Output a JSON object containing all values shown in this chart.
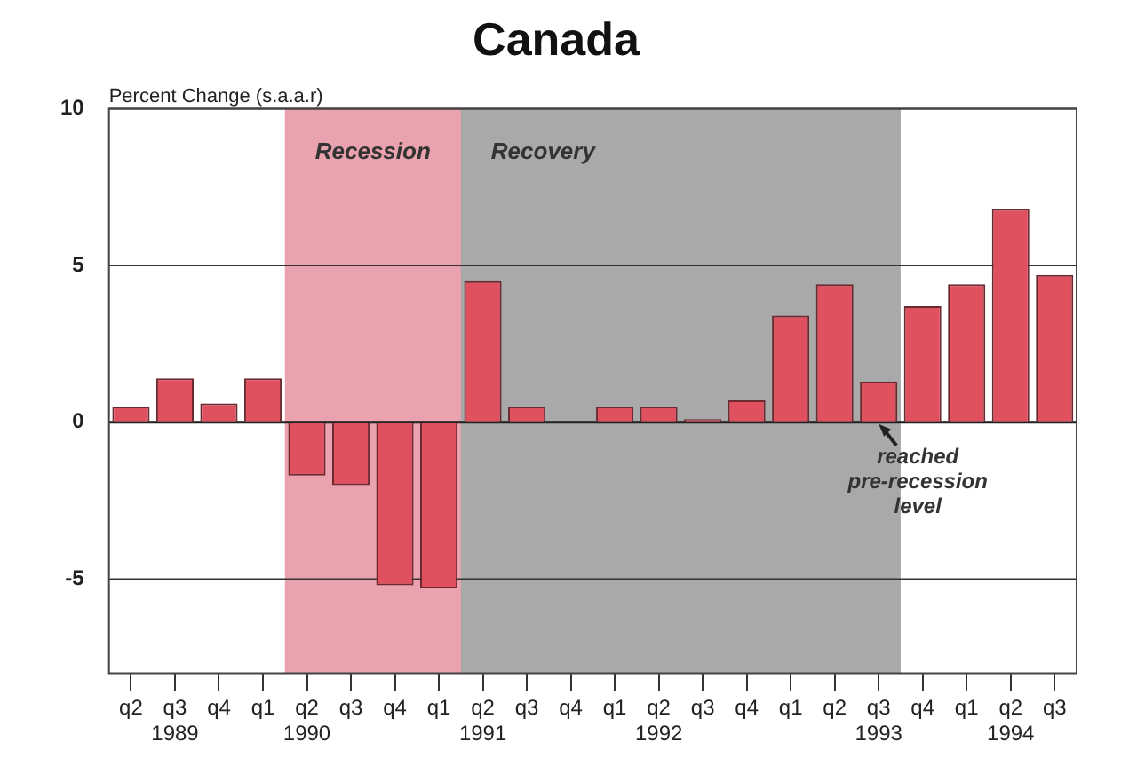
{
  "chart_data": {
    "type": "bar",
    "title": "Canada",
    "ylabel": "Percent Change (s.a.a.r)",
    "categories": [
      "q2",
      "q3\n1989",
      "q4",
      "q1",
      "q2\n1990",
      "q3",
      "q4",
      "q1",
      "q2\n1991",
      "q3",
      "q4",
      "q1",
      "q2\n1992",
      "q3",
      "q4",
      "q1",
      "q2",
      "q3\n1993",
      "q4",
      "q1",
      "q2\n1994",
      "q3"
    ],
    "values": [
      0.5,
      1.4,
      0.6,
      1.4,
      -1.7,
      -2.0,
      -5.2,
      -5.3,
      4.5,
      0.5,
      0,
      0.5,
      0.5,
      0.1,
      0.7,
      3.4,
      4.4,
      1.3,
      3.7,
      4.4,
      6.8,
      4.7
    ],
    "color": "#e0505f",
    "ylim": [
      -8,
      10
    ],
    "yticks": [
      -5,
      0,
      5,
      10
    ],
    "grid": "y",
    "bands": [
      {
        "axis": "x",
        "from": "q2\n1990",
        "to": "q2\n1991",
        "label": "Recession",
        "color": "#eaa3ae"
      },
      {
        "axis": "x",
        "from": "q2\n1991",
        "to": "q3\n1993",
        "label": "Recovery",
        "color": "#a9a9a9"
      }
    ],
    "annotations": [
      {
        "text": "reached\npre-recession\nlevel",
        "x": "q3\n1993",
        "y": 0
      }
    ]
  }
}
